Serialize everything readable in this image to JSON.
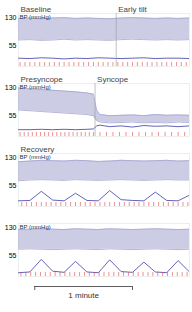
{
  "chart_data": [
    {
      "type": "line",
      "y_label": "BP (mmHg)",
      "xlim": [
        0,
        105
      ],
      "ylim": [
        0,
        140
      ],
      "yticks": [
        55,
        130
      ],
      "tick_labels": "y",
      "segments": [
        {
          "label": "Baseline",
          "start": 0
        },
        {
          "label": "Early tilt",
          "start": 60
        }
      ],
      "x": [
        0,
        7,
        14,
        21,
        28,
        35,
        42,
        49,
        56,
        63,
        70,
        77,
        84,
        91,
        98,
        105
      ],
      "bp_high": [
        127,
        128,
        126,
        128,
        129,
        127,
        128,
        127,
        126,
        128,
        129,
        128,
        127,
        128,
        127,
        128
      ],
      "bp_low": [
        70,
        71,
        69,
        70,
        72,
        70,
        71,
        70,
        69,
        71,
        72,
        71,
        70,
        71,
        70,
        71
      ],
      "lower_trace": [
        22,
        21,
        23,
        22,
        20,
        22,
        21,
        23,
        22,
        21,
        22,
        23,
        21,
        22,
        22,
        21
      ],
      "beats": [
        1,
        4,
        7,
        10,
        13,
        16,
        19,
        22,
        25,
        28,
        31,
        34,
        37,
        40,
        43,
        46,
        49,
        52,
        55,
        58,
        61,
        64,
        67,
        70,
        73,
        76,
        79,
        82,
        85,
        88,
        91,
        94,
        97,
        100,
        103
      ],
      "color": "#a3a3cf",
      "line_color": "#3b3ba6",
      "beat_color": "#e04848"
    },
    {
      "type": "line",
      "y_label": "BP (mmHg)",
      "xlim": [
        0,
        105
      ],
      "ylim": [
        0,
        140
      ],
      "yticks": [
        55,
        130
      ],
      "tick_labels": "y",
      "segments": [
        {
          "label": "Presyncope",
          "start": 0
        },
        {
          "label": "Syncope",
          "start": 47
        }
      ],
      "x": [
        0,
        7,
        14,
        21,
        28,
        35,
        42,
        46,
        48,
        50,
        56,
        63,
        70,
        77,
        84,
        91,
        98,
        105
      ],
      "bp_high": [
        128,
        126,
        124,
        122,
        120,
        118,
        115,
        112,
        70,
        58,
        55,
        56,
        57,
        55,
        58,
        56,
        57,
        56
      ],
      "bp_low": [
        70,
        68,
        66,
        64,
        62,
        60,
        58,
        55,
        42,
        38,
        36,
        37,
        38,
        36,
        37,
        36,
        38,
        37
      ],
      "lower_trace": [
        18,
        18,
        19,
        18,
        19,
        18,
        19,
        20,
        28,
        30,
        26,
        28,
        25,
        29,
        27,
        28,
        26,
        28
      ],
      "beats": [
        1,
        3.5,
        6,
        8.5,
        11,
        13.5,
        16,
        18.5,
        21,
        23.5,
        26,
        28.5,
        31,
        33.5,
        36,
        38.5,
        41,
        43.5,
        46,
        50,
        54,
        58,
        62,
        66,
        70,
        74,
        78,
        82,
        86,
        90,
        94,
        98,
        102
      ],
      "color": "#a3a3cf",
      "line_color": "#3b3ba6",
      "beat_color": "#e04848"
    },
    {
      "type": "line",
      "y_label": "BP (mmHg)",
      "xlim": [
        0,
        105
      ],
      "ylim": [
        0,
        140
      ],
      "yticks": [
        55,
        130
      ],
      "tick_labels": "y",
      "segments": [
        {
          "label": "Recovery",
          "start": 0
        }
      ],
      "x": [
        0,
        7,
        14,
        21,
        28,
        35,
        42,
        49,
        56,
        63,
        70,
        77,
        84,
        91,
        98,
        105
      ],
      "bp_high": [
        118,
        120,
        122,
        121,
        120,
        122,
        121,
        119,
        120,
        122,
        121,
        120,
        121,
        122,
        120,
        121
      ],
      "bp_low": [
        68,
        70,
        71,
        70,
        69,
        71,
        70,
        69,
        70,
        71,
        70,
        69,
        70,
        71,
        70,
        70
      ],
      "lower_trace": [
        15,
        16,
        40,
        17,
        15,
        35,
        16,
        15,
        42,
        18,
        16,
        15,
        38,
        16,
        15,
        30
      ],
      "beats": [
        2,
        5,
        8,
        11,
        14,
        17,
        20,
        23,
        26,
        29,
        32,
        35,
        38,
        41,
        44,
        47,
        50,
        53,
        56,
        59,
        62,
        65,
        68,
        71,
        74,
        77,
        80,
        83,
        86,
        89,
        92,
        95,
        98,
        101,
        104
      ],
      "color": "#a3a3cf",
      "line_color": "#3b3ba6",
      "beat_color": "#e04848"
    },
    {
      "type": "line",
      "y_label": "BP (mmHg)",
      "xlim": [
        0,
        105
      ],
      "ylim": [
        0,
        140
      ],
      "yticks": [
        55,
        130
      ],
      "tick_labels": "y",
      "segments": [],
      "x": [
        0,
        7,
        14,
        21,
        28,
        35,
        42,
        49,
        56,
        63,
        70,
        77,
        84,
        91,
        98,
        105
      ],
      "bp_high": [
        124,
        125,
        126,
        125,
        124,
        126,
        125,
        124,
        126,
        125,
        124,
        125,
        126,
        125,
        124,
        125
      ],
      "bp_low": [
        72,
        73,
        72,
        71,
        72,
        73,
        72,
        71,
        73,
        72,
        71,
        72,
        73,
        72,
        71,
        72
      ],
      "lower_trace": [
        10,
        12,
        45,
        14,
        11,
        40,
        12,
        10,
        44,
        13,
        11,
        38,
        12,
        10,
        42,
        12
      ],
      "beats": [
        1.5,
        4.5,
        7.5,
        10.5,
        13.5,
        16.5,
        19.5,
        22.5,
        25.5,
        28.5,
        31.5,
        34.5,
        37.5,
        40.5,
        43.5,
        46.5,
        49.5,
        52.5,
        55.5,
        58.5,
        61.5,
        64.5,
        67.5,
        70.5,
        73.5,
        76.5,
        79.5,
        82.5,
        85.5,
        88.5,
        91.5,
        94.5,
        97.5,
        100.5,
        103.5
      ],
      "color": "#a3a3cf",
      "line_color": "#3b3ba6",
      "beat_color": "#e04848",
      "annotations": [
        {
          "text": "1 minute",
          "x": [
            10,
            70
          ]
        }
      ]
    }
  ]
}
